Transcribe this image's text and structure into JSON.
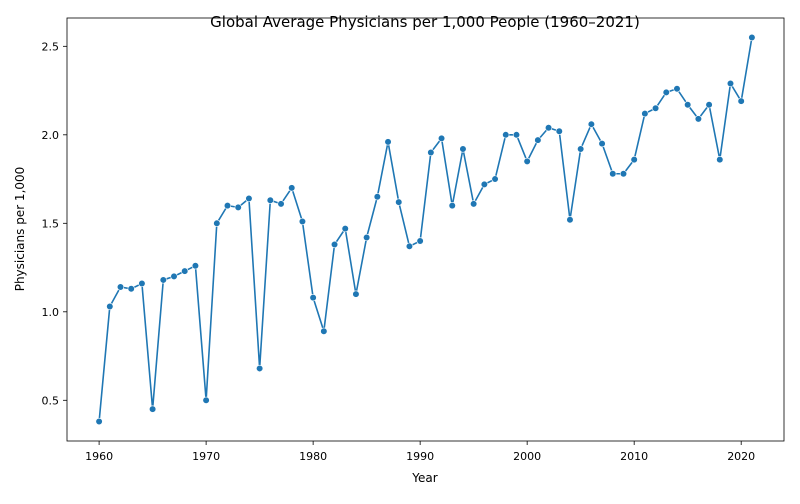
{
  "chart_data": {
    "type": "line",
    "title": "Global Average Physicians per 1,000 People (1960–2021)",
    "xlabel": "Year",
    "ylabel": "Physicians per 1,000",
    "xlim": [
      1957,
      2024
    ],
    "ylim": [
      0.27,
      2.66
    ],
    "x_ticks": [
      1960,
      1970,
      1980,
      1990,
      2000,
      2010,
      2020
    ],
    "y_ticks": [
      0.5,
      1.0,
      1.5,
      2.0,
      2.5
    ],
    "y_tick_labels": [
      "0.5",
      "1.0",
      "1.5",
      "2.0",
      "2.5"
    ],
    "grid": false,
    "line_color": "#1f77b4",
    "series": [
      {
        "x": [
          1960,
          1961,
          1962,
          1963,
          1964,
          1965,
          1966,
          1967,
          1968,
          1969,
          1970,
          1971,
          1972,
          1973,
          1974,
          1975,
          1976,
          1977,
          1978,
          1979,
          1980,
          1981,
          1982,
          1983,
          1984,
          1985,
          1986,
          1987,
          1988,
          1989,
          1990,
          1991,
          1992,
          1993,
          1994,
          1995,
          1996,
          1997,
          1998,
          1999,
          2000,
          2001,
          2002,
          2003,
          2004,
          2005,
          2006,
          2007,
          2008,
          2009,
          2010,
          2011,
          2012,
          2013,
          2014,
          2015,
          2016,
          2017,
          2018,
          2019,
          2020,
          2021
        ],
        "values": [
          0.38,
          1.03,
          1.14,
          1.13,
          1.16,
          0.45,
          1.18,
          1.2,
          1.23,
          1.26,
          0.5,
          1.5,
          1.6,
          1.59,
          1.64,
          0.68,
          1.63,
          1.61,
          1.7,
          1.51,
          1.08,
          0.89,
          1.38,
          1.47,
          1.1,
          1.42,
          1.65,
          1.96,
          1.62,
          1.37,
          1.4,
          1.9,
          1.98,
          1.6,
          1.92,
          1.61,
          1.72,
          1.75,
          2.0,
          2.0,
          1.85,
          1.97,
          2.04,
          2.02,
          1.52,
          1.92,
          2.06,
          1.95,
          1.78,
          1.78,
          1.86,
          2.12,
          2.15,
          2.24,
          2.26,
          2.17,
          2.09,
          2.17,
          1.86,
          2.29,
          2.19,
          2.55
        ]
      }
    ]
  }
}
